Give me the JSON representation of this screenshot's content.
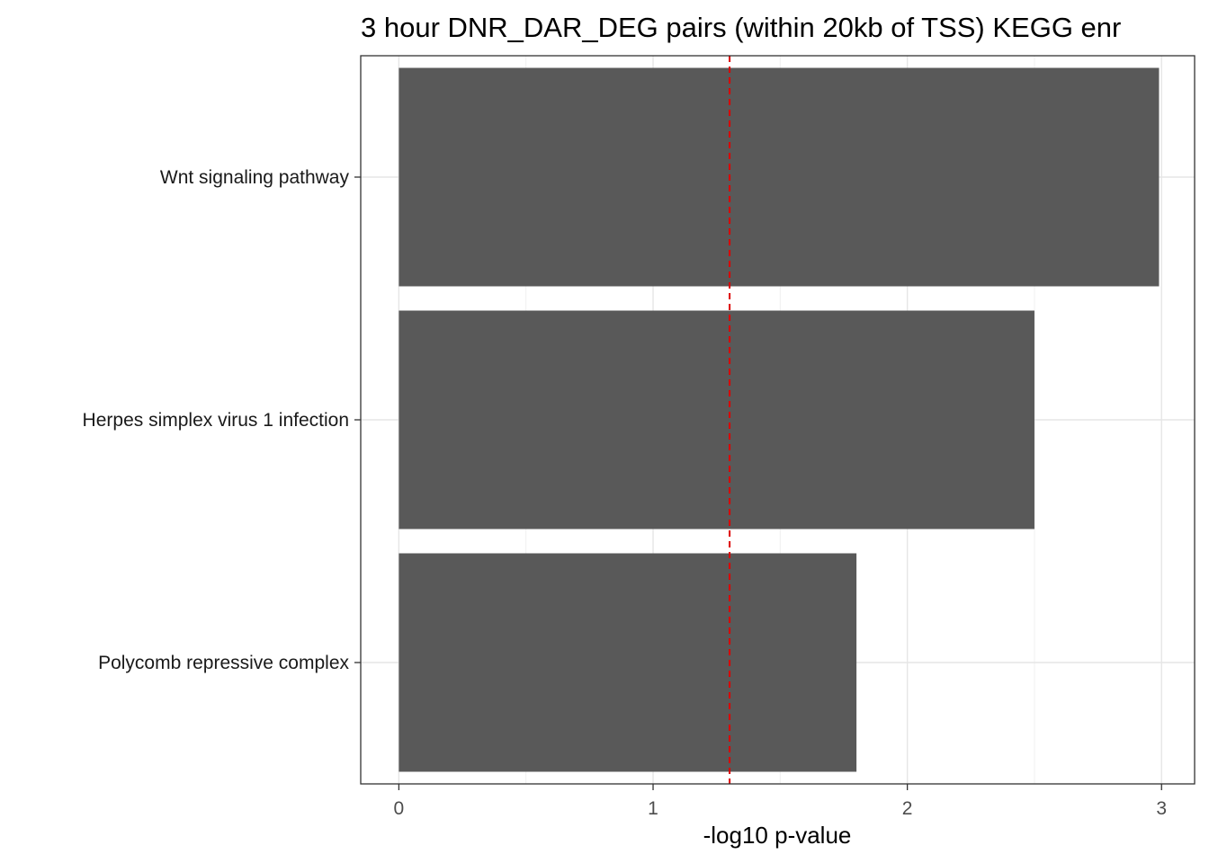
{
  "chart_data": {
    "type": "bar",
    "orientation": "horizontal",
    "title": "3 hour DNR_DAR_DEG pairs (within 20kb of TSS) KEGG enr",
    "xlabel": "-log10 p-value",
    "ylabel": "",
    "categories": [
      "Wnt signaling pathway",
      "Herpes simplex virus 1 infection",
      "Polycomb repressive complex"
    ],
    "values": [
      2.99,
      2.5,
      1.8
    ],
    "xlim": [
      -0.15,
      3.13
    ],
    "xticks": [
      0,
      1,
      2,
      3
    ],
    "xtick_labels": [
      "0",
      "1",
      "2",
      "3"
    ],
    "reference_line": {
      "x": 1.301,
      "style": "dashed",
      "color": "#dd0000"
    },
    "bar_color": "#595959",
    "grid": true,
    "legend": "none"
  }
}
